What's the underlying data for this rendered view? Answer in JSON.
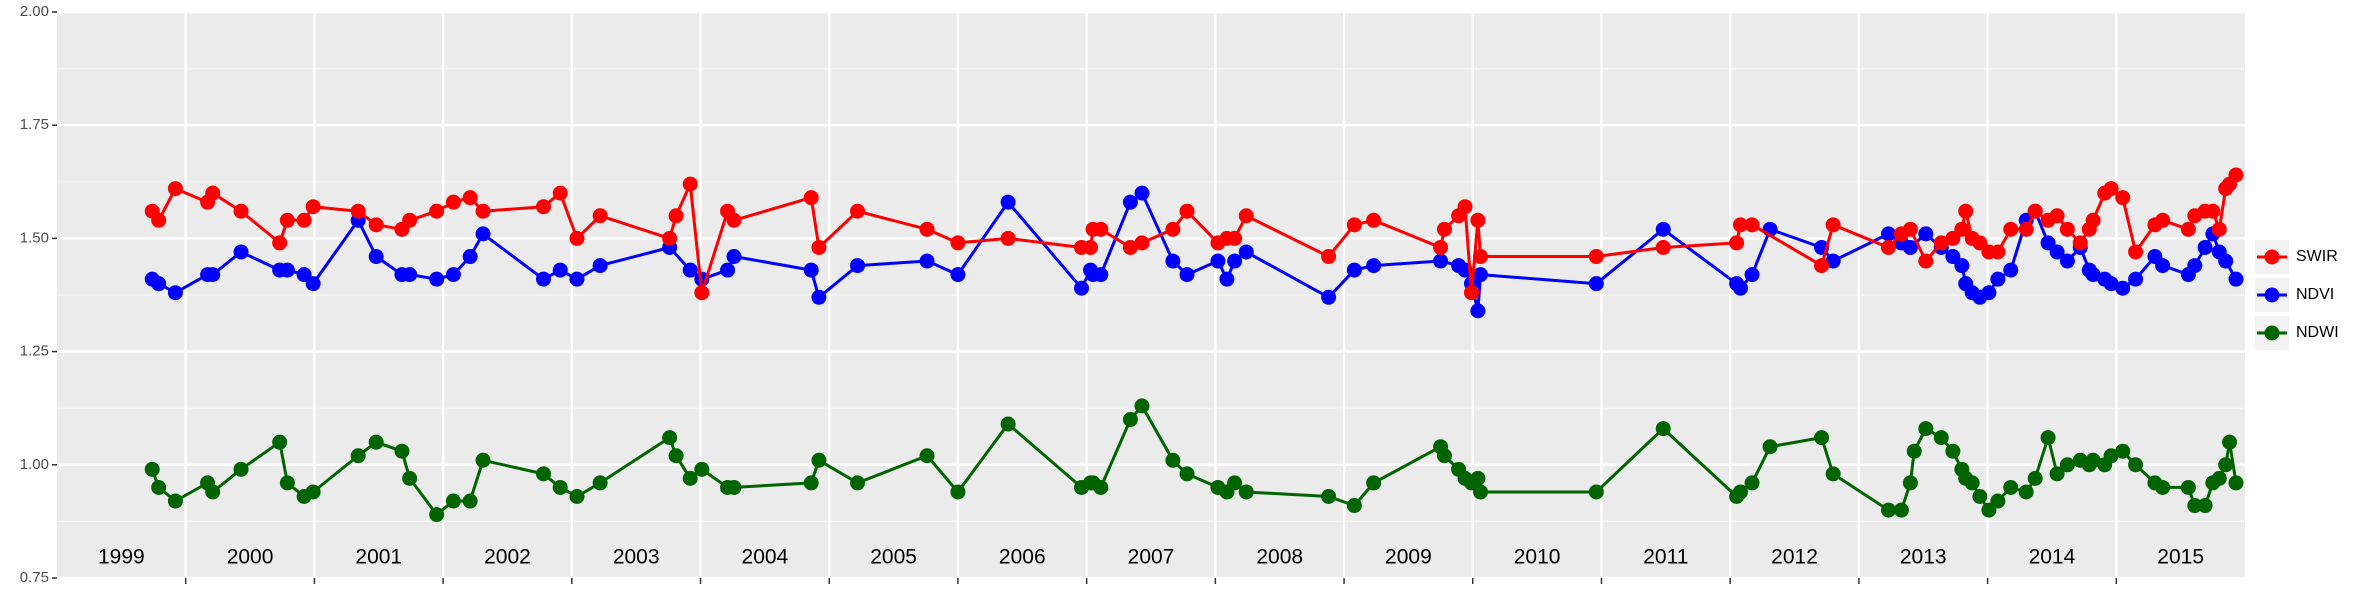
{
  "chart_data": {
    "type": "line",
    "xlim": [
      1999,
      2016
    ],
    "xgrid": [
      2000,
      2001,
      2002,
      2003,
      2004,
      2005,
      2006,
      2007,
      2008,
      2009,
      2010,
      2011,
      2012,
      2013,
      2014,
      2015
    ],
    "xticks": [
      {
        "value": 1999.5,
        "label": "1999"
      },
      {
        "value": 2000.5,
        "label": "2000"
      },
      {
        "value": 2001.5,
        "label": "2001"
      },
      {
        "value": 2002.5,
        "label": "2002"
      },
      {
        "value": 2003.5,
        "label": "2003"
      },
      {
        "value": 2004.5,
        "label": "2004"
      },
      {
        "value": 2005.5,
        "label": "2005"
      },
      {
        "value": 2006.5,
        "label": "2006"
      },
      {
        "value": 2007.5,
        "label": "2007"
      },
      {
        "value": 2008.5,
        "label": "2008"
      },
      {
        "value": 2009.5,
        "label": "2009"
      },
      {
        "value": 2010.5,
        "label": "2010"
      },
      {
        "value": 2011.5,
        "label": "2011"
      },
      {
        "value": 2012.5,
        "label": "2012"
      },
      {
        "value": 2013.5,
        "label": "2013"
      },
      {
        "value": 2014.5,
        "label": "2014"
      },
      {
        "value": 2015.5,
        "label": "2015"
      }
    ],
    "ylim": [
      0.75,
      2.0
    ],
    "yticks": [
      {
        "value": 0.75,
        "label": "0.75"
      },
      {
        "value": 1,
        "label": "1.00"
      },
      {
        "value": 1.25,
        "label": "1.25"
      },
      {
        "value": 1.5,
        "label": "1.50"
      },
      {
        "value": 1.75,
        "label": "1.75"
      },
      {
        "value": 2,
        "label": "2.00"
      }
    ],
    "grid": true,
    "legend": "right",
    "series": [
      {
        "name": "SWIR",
        "color": "#ff0000",
        "x": [
          1999.74,
          1999.79,
          1999.92,
          2000.17,
          2000.21,
          2000.43,
          2000.73,
          2000.79,
          2000.92,
          2000.99,
          2001.34,
          2001.48,
          2001.68,
          2001.74,
          2001.95,
          2002.08,
          2002.21,
          2002.31,
          2002.78,
          2002.91,
          2003.04,
          2003.22,
          2003.76,
          2003.81,
          2003.92,
          2004.01,
          2004.21,
          2004.26,
          2004.86,
          2004.92,
          2005.22,
          2005.76,
          2006.0,
          2006.39,
          2006.96,
          2007.03,
          2007.05,
          2007.11,
          2007.34,
          2007.43,
          2007.67,
          2007.78,
          2008.02,
          2008.09,
          2008.15,
          2008.24,
          2008.88,
          2009.08,
          2009.23,
          2009.75,
          2009.78,
          2009.89,
          2009.94,
          2009.99,
          2010.04,
          2010.06,
          2010.96,
          2011.48,
          2012.05,
          2012.08,
          2012.17,
          2012.71,
          2012.8,
          2013.23,
          2013.33,
          2013.4,
          2013.52,
          2013.64,
          2013.73,
          2013.8,
          2013.83,
          2013.88,
          2013.94,
          2014.01,
          2014.08,
          2014.18,
          2014.3,
          2014.37,
          2014.47,
          2014.54,
          2014.62,
          2014.72,
          2014.79,
          2014.82,
          2014.91,
          2014.96,
          2015.05,
          2015.15,
          2015.3,
          2015.36,
          2015.56,
          2015.61,
          2015.69,
          2015.75,
          2015.8,
          2015.85,
          2015.88,
          2015.93
        ],
        "values": [
          1.56,
          1.54,
          1.61,
          1.58,
          1.6,
          1.56,
          1.49,
          1.54,
          1.54,
          1.57,
          1.56,
          1.53,
          1.52,
          1.54,
          1.56,
          1.58,
          1.59,
          1.56,
          1.57,
          1.6,
          1.5,
          1.55,
          1.5,
          1.55,
          1.62,
          1.38,
          1.56,
          1.54,
          1.59,
          1.48,
          1.56,
          1.52,
          1.49,
          1.5,
          1.48,
          1.48,
          1.52,
          1.52,
          1.48,
          1.49,
          1.52,
          1.56,
          1.49,
          1.5,
          1.5,
          1.55,
          1.46,
          1.53,
          1.54,
          1.48,
          1.52,
          1.55,
          1.57,
          1.38,
          1.54,
          1.46,
          1.46,
          1.48,
          1.49,
          1.53,
          1.53,
          1.44,
          1.53,
          1.48,
          1.51,
          1.52,
          1.45,
          1.49,
          1.5,
          1.52,
          1.56,
          1.5,
          1.49,
          1.47,
          1.47,
          1.52,
          1.52,
          1.56,
          1.54,
          1.55,
          1.52,
          1.49,
          1.52,
          1.54,
          1.6,
          1.61,
          1.59,
          1.47,
          1.53,
          1.54,
          1.52,
          1.55,
          1.56,
          1.56,
          1.52,
          1.61,
          1.62,
          1.64
        ]
      },
      {
        "name": "NDVI",
        "color": "#0000ff",
        "x": [
          1999.74,
          1999.79,
          1999.92,
          2000.17,
          2000.21,
          2000.43,
          2000.73,
          2000.79,
          2000.92,
          2000.99,
          2001.34,
          2001.48,
          2001.68,
          2001.74,
          2001.95,
          2002.08,
          2002.21,
          2002.31,
          2002.78,
          2002.91,
          2003.04,
          2003.22,
          2003.76,
          2003.92,
          2004.01,
          2004.21,
          2004.26,
          2004.86,
          2004.92,
          2005.22,
          2005.76,
          2006.0,
          2006.39,
          2006.96,
          2007.03,
          2007.05,
          2007.11,
          2007.34,
          2007.43,
          2007.67,
          2007.78,
          2008.02,
          2008.09,
          2008.15,
          2008.24,
          2008.88,
          2009.08,
          2009.23,
          2009.75,
          2009.89,
          2009.94,
          2009.99,
          2010.04,
          2010.06,
          2010.96,
          2011.48,
          2012.05,
          2012.08,
          2012.17,
          2012.31,
          2012.71,
          2012.8,
          2013.23,
          2013.33,
          2013.4,
          2013.52,
          2013.64,
          2013.73,
          2013.8,
          2013.83,
          2013.88,
          2013.94,
          2014.01,
          2014.08,
          2014.18,
          2014.3,
          2014.37,
          2014.47,
          2014.54,
          2014.62,
          2014.72,
          2014.79,
          2014.82,
          2014.91,
          2014.96,
          2015.05,
          2015.15,
          2015.3,
          2015.36,
          2015.56,
          2015.61,
          2015.69,
          2015.75,
          2015.8,
          2015.85,
          2015.93
        ],
        "values": [
          1.41,
          1.4,
          1.38,
          1.42,
          1.42,
          1.47,
          1.43,
          1.43,
          1.42,
          1.4,
          1.54,
          1.46,
          1.42,
          1.42,
          1.41,
          1.42,
          1.46,
          1.51,
          1.41,
          1.43,
          1.41,
          1.44,
          1.48,
          1.43,
          1.41,
          1.43,
          1.46,
          1.43,
          1.37,
          1.44,
          1.45,
          1.42,
          1.58,
          1.39,
          1.43,
          1.42,
          1.42,
          1.58,
          1.6,
          1.45,
          1.42,
          1.45,
          1.41,
          1.45,
          1.47,
          1.37,
          1.43,
          1.44,
          1.45,
          1.44,
          1.43,
          1.4,
          1.34,
          1.42,
          1.4,
          1.52,
          1.4,
          1.39,
          1.42,
          1.52,
          1.48,
          1.45,
          1.51,
          1.49,
          1.48,
          1.51,
          1.48,
          1.46,
          1.44,
          1.4,
          1.38,
          1.37,
          1.38,
          1.41,
          1.43,
          1.54,
          1.56,
          1.49,
          1.47,
          1.45,
          1.48,
          1.43,
          1.42,
          1.41,
          1.4,
          1.39,
          1.41,
          1.46,
          1.44,
          1.42,
          1.44,
          1.48,
          1.51,
          1.47,
          1.45,
          1.41
        ]
      },
      {
        "name": "NDWI",
        "color": "#006400",
        "x": [
          1999.74,
          1999.79,
          1999.92,
          2000.17,
          2000.21,
          2000.43,
          2000.73,
          2000.79,
          2000.92,
          2000.99,
          2001.34,
          2001.48,
          2001.68,
          2001.74,
          2001.95,
          2002.08,
          2002.21,
          2002.31,
          2002.78,
          2002.91,
          2003.04,
          2003.22,
          2003.76,
          2003.81,
          2003.92,
          2004.01,
          2004.21,
          2004.26,
          2004.86,
          2004.92,
          2005.22,
          2005.76,
          2006.0,
          2006.39,
          2006.96,
          2007.03,
          2007.05,
          2007.11,
          2007.34,
          2007.43,
          2007.67,
          2007.78,
          2008.02,
          2008.09,
          2008.15,
          2008.24,
          2008.88,
          2009.08,
          2009.23,
          2009.75,
          2009.78,
          2009.89,
          2009.94,
          2009.99,
          2010.04,
          2010.06,
          2010.96,
          2011.48,
          2012.05,
          2012.08,
          2012.17,
          2012.31,
          2012.71,
          2012.8,
          2013.23,
          2013.33,
          2013.4,
          2013.43,
          2013.52,
          2013.64,
          2013.73,
          2013.8,
          2013.83,
          2013.88,
          2013.94,
          2014.01,
          2014.08,
          2014.18,
          2014.3,
          2014.37,
          2014.47,
          2014.54,
          2014.62,
          2014.72,
          2014.79,
          2014.82,
          2014.91,
          2014.96,
          2015.05,
          2015.15,
          2015.3,
          2015.36,
          2015.56,
          2015.61,
          2015.69,
          2015.75,
          2015.8,
          2015.85,
          2015.88,
          2015.93
        ],
        "values": [
          0.99,
          0.95,
          0.92,
          0.96,
          0.94,
          0.99,
          1.05,
          0.96,
          0.93,
          0.94,
          1.02,
          1.05,
          1.03,
          0.97,
          0.89,
          0.92,
          0.92,
          1.01,
          0.98,
          0.95,
          0.93,
          0.96,
          1.06,
          1.02,
          0.97,
          0.99,
          0.95,
          0.95,
          0.96,
          1.01,
          0.96,
          1.02,
          0.94,
          1.09,
          0.95,
          0.96,
          0.96,
          0.95,
          1.1,
          1.13,
          1.01,
          0.98,
          0.95,
          0.94,
          0.96,
          0.94,
          0.93,
          0.91,
          0.96,
          1.04,
          1.02,
          0.99,
          0.97,
          0.96,
          0.97,
          0.94,
          0.94,
          1.08,
          0.93,
          0.94,
          0.96,
          1.04,
          1.06,
          0.98,
          0.9,
          0.9,
          0.96,
          1.03,
          1.08,
          1.06,
          1.03,
          0.99,
          0.97,
          0.96,
          0.93,
          0.9,
          0.92,
          0.95,
          0.94,
          0.97,
          1.06,
          0.98,
          1.0,
          1.01,
          1.0,
          1.01,
          1.0,
          1.02,
          1.03,
          1.0,
          0.96,
          0.95,
          0.95,
          0.91,
          0.91,
          0.96,
          0.97,
          1.0,
          1.05,
          0.96
        ]
      }
    ]
  }
}
